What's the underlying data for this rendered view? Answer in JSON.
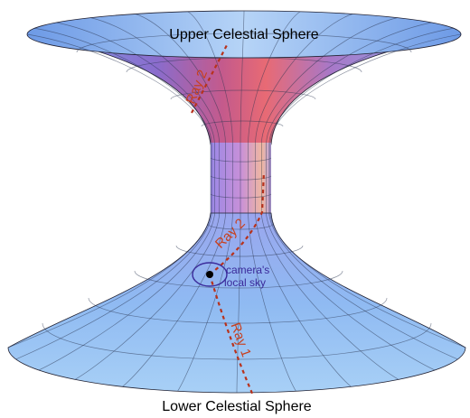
{
  "annotations": {
    "upper_sphere": "Upper Celestial Sphere",
    "lower_sphere": "Lower Celestial Sphere"
  },
  "rays": [
    {
      "label": "Ray 2"
    },
    {
      "label": "Ray 2"
    },
    {
      "label": "Ray 1"
    }
  ],
  "camera": {
    "label_lines": [
      "camera's",
      "local sky"
    ]
  }
}
